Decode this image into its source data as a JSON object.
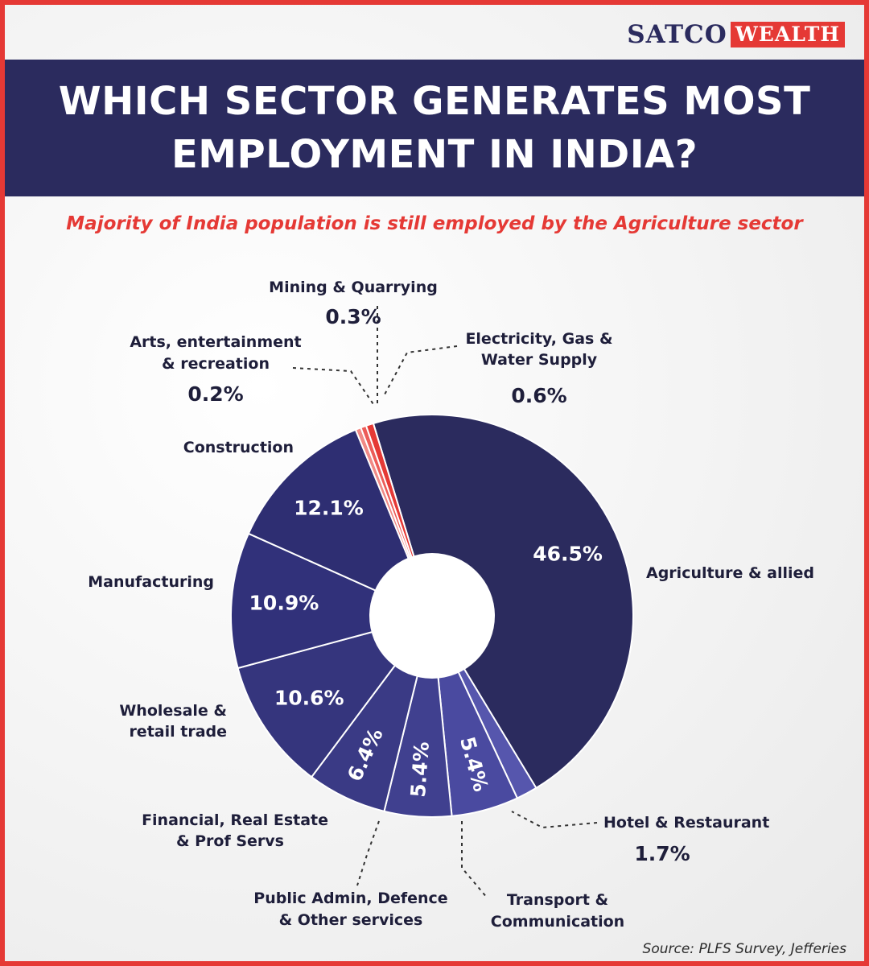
{
  "logo": {
    "brand": "SATCO",
    "tag": "WEALTH"
  },
  "title": "WHICH SECTOR GENERATES MOST EMPLOYMENT IN INDIA?",
  "subtitle": "Majority of India population is still employed by the Agriculture sector",
  "source": "Source: PLFS Survey, Jefferies",
  "colors": {
    "title_band": "#2b2b5e",
    "accent_red": "#e53935",
    "slice_dark": "#2b2b5e",
    "slice_mid": "#2f2f74",
    "slice_light": "#5252a8",
    "slice_red": "#e53935"
  },
  "chart_data": {
    "type": "pie",
    "style": "donut",
    "title": "WHICH SECTOR GENERATES MOST EMPLOYMENT IN INDIA?",
    "unit": "%",
    "slices": [
      {
        "label": "Agriculture & allied",
        "value": 46.5,
        "display": "46.5%",
        "color": "#2b2b5e"
      },
      {
        "label": "Hotel & Restaurant",
        "value": 1.7,
        "display": "1.7%",
        "color": "#5656ad"
      },
      {
        "label": "Transport & Communication",
        "value": 5.4,
        "display": "5.4%",
        "color": "#4a4aa0"
      },
      {
        "label": "Public Admin, Defence & Other services",
        "value": 5.4,
        "display": "5.4%",
        "color": "#40408f"
      },
      {
        "label": "Financial, Real Estate & Prof Servs",
        "value": 6.4,
        "display": "6.4%",
        "color": "#3a3a85"
      },
      {
        "label": "Wholesale & retail trade",
        "value": 10.6,
        "display": "10.6%",
        "color": "#35357d"
      },
      {
        "label": "Manufacturing",
        "value": 10.9,
        "display": "10.9%",
        "color": "#31317a"
      },
      {
        "label": "Construction",
        "value": 12.1,
        "display": "12.1%",
        "color": "#2e2e72"
      },
      {
        "label": "Arts, entertainment & recreation",
        "value": 0.2,
        "display": "0.2%",
        "color": "#f08a86"
      },
      {
        "label": "Mining & Quarrying",
        "value": 0.3,
        "display": "0.3%",
        "color": "#ec5c58"
      },
      {
        "label": "Electricity, Gas & Water Supply",
        "value": 0.6,
        "display": "0.6%",
        "color": "#e53935"
      }
    ]
  },
  "labels": {
    "agriculture": "Agriculture & allied",
    "hotel": "Hotel & Restaurant",
    "hotel_pct": "1.7%",
    "transport_1": "Transport &",
    "transport_2": "Communication",
    "public_1": "Public Admin, Defence",
    "public_2": "& Other services",
    "financial_1": "Financial, Real Estate",
    "financial_2": "& Prof Servs",
    "wholesale_1": "Wholesale &",
    "wholesale_2": "retail trade",
    "manufacturing": "Manufacturing",
    "construction": "Construction",
    "arts_1": "Arts, entertainment",
    "arts_2": "& recreation",
    "arts_pct": "0.2%",
    "mining": "Mining & Quarrying",
    "mining_pct": "0.3%",
    "electricity_1": "Electricity, Gas &",
    "electricity_2": "Water Supply",
    "electricity_pct": "0.6%"
  }
}
